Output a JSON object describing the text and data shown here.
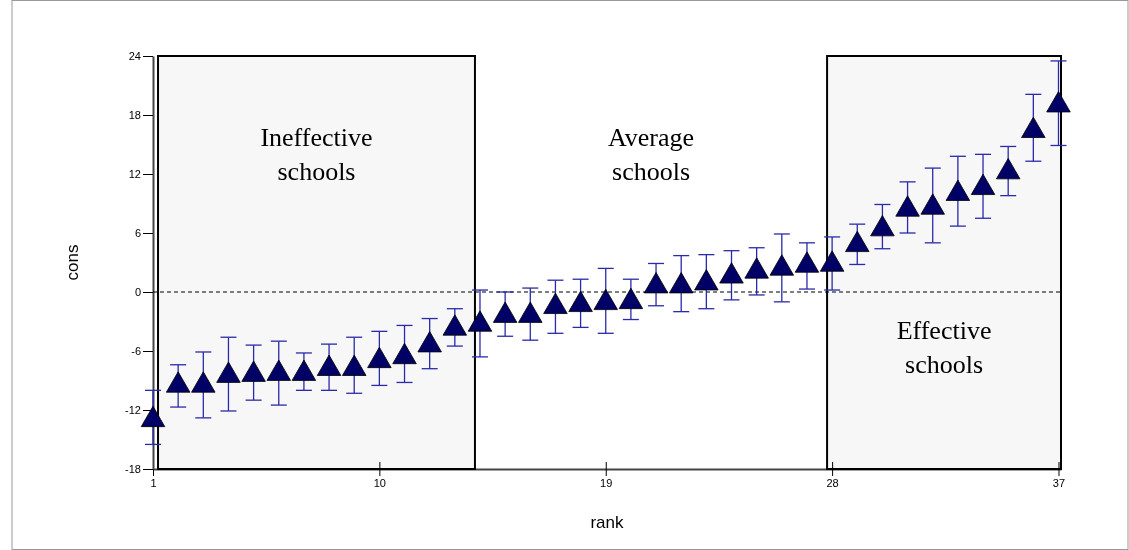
{
  "chart_data": {
    "type": "scatter",
    "xlabel": "rank",
    "ylabel": "cons",
    "marker": "triangle",
    "x": [
      1,
      2,
      3,
      4,
      5,
      6,
      7,
      8,
      9,
      10,
      11,
      12,
      13,
      14,
      15,
      16,
      17,
      18,
      19,
      20,
      21,
      22,
      23,
      24,
      25,
      26,
      27,
      28,
      29,
      30,
      31,
      32,
      33,
      34,
      35,
      36,
      37
    ],
    "series": [
      {
        "color": "#000066",
        "values": [
          -13,
          -9.5,
          -9.5,
          -8.5,
          -8.4,
          -8.3,
          -8.3,
          -7.8,
          -7.8,
          -7,
          -6.6,
          -5.4,
          -3.7,
          -3.3,
          -2.4,
          -2.4,
          -1.5,
          -1.3,
          -1.1,
          -1,
          0.6,
          0.6,
          0.9,
          1.6,
          2.1,
          2.4,
          2.7,
          2.8,
          4.8,
          6.4,
          8.4,
          8.6,
          10,
          10.6,
          12.2,
          16.4,
          19
        ],
        "errors": [
          [
            -15.5,
            -10
          ],
          [
            -11.7,
            -7.4
          ],
          [
            -12.8,
            -6.1
          ],
          [
            -12.1,
            -4.6
          ],
          [
            -11,
            -5.4
          ],
          [
            -11.5,
            -5
          ],
          [
            -10,
            -6.2
          ],
          [
            -10,
            -5.3
          ],
          [
            -10.3,
            -4.6
          ],
          [
            -9.5,
            -4
          ],
          [
            -9.2,
            -3.4
          ],
          [
            -7.8,
            -2.7
          ],
          [
            -5.5,
            -1.7
          ],
          [
            -6.6,
            0.2
          ],
          [
            -4.5,
            0
          ],
          [
            -4.9,
            0.4
          ],
          [
            -4.2,
            1.2
          ],
          [
            -3.6,
            1.3
          ],
          [
            -4.2,
            2.4
          ],
          [
            -2.8,
            1.3
          ],
          [
            -1.4,
            2.9
          ],
          [
            -2,
            3.7
          ],
          [
            -1.7,
            3.8
          ],
          [
            -0.8,
            4.2
          ],
          [
            -0.3,
            4.5
          ],
          [
            -1,
            5.9
          ],
          [
            0.3,
            5
          ],
          [
            0.2,
            5.6
          ],
          [
            2.8,
            6.9
          ],
          [
            4.4,
            8.9
          ],
          [
            6,
            11.2
          ],
          [
            5,
            12.6
          ],
          [
            6.7,
            13.8
          ],
          [
            7.5,
            14
          ],
          [
            9.8,
            14.8
          ],
          [
            13.3,
            20.1
          ],
          [
            14.9,
            23.5
          ]
        ]
      }
    ],
    "xlim": [
      1,
      37.1
    ],
    "xticks": [
      1,
      10,
      19,
      28,
      37
    ],
    "ylim": [
      -18,
      24
    ],
    "yticks": [
      -18,
      -12,
      -6,
      0,
      6,
      12,
      18,
      24
    ],
    "ref_lines": [
      {
        "axis": "y",
        "value": 0,
        "line_style": "dashed",
        "color": "#000000"
      }
    ],
    "bands": [
      {
        "axis": "x",
        "from": 1.2,
        "to": 13.8,
        "color": "#000000",
        "label": "Ineffective\nschools"
      },
      {
        "axis": "x",
        "from": 27.8,
        "to": 37.1,
        "color": "#000000",
        "label": "Effective\nschools"
      }
    ],
    "annotations": [
      "Average\nschools"
    ]
  }
}
